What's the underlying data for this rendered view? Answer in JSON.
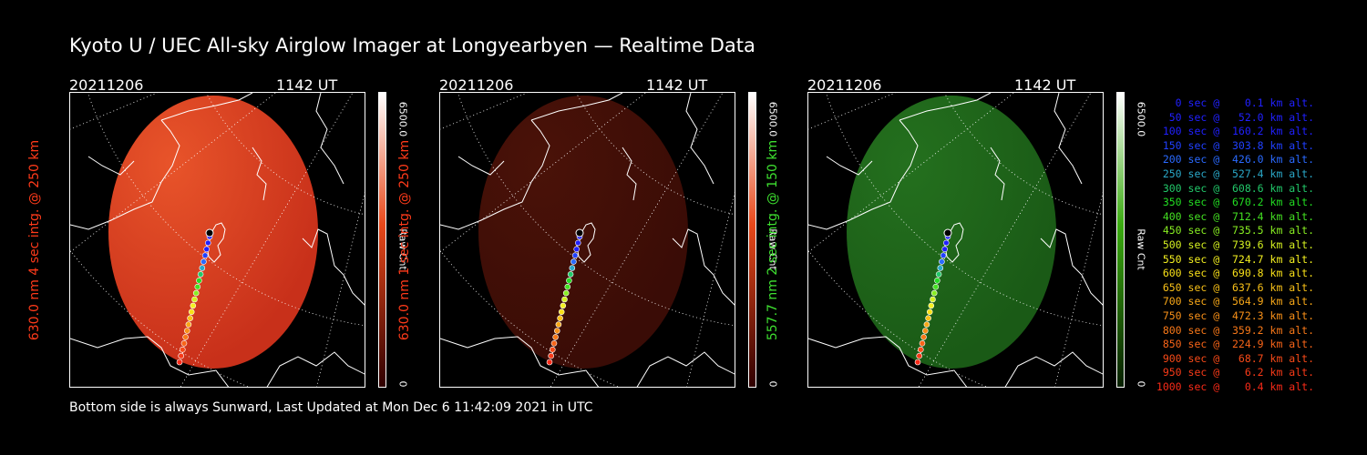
{
  "title": "Kyoto U / UEC All-sky Airglow Imager at Longyearbyen — Realtime Data",
  "footer": "Bottom side is always Sunward, Last Updated at Mon Dec  6 11:42:09 2021 in UTC",
  "panels": [
    {
      "date": "20211206",
      "time": "1142 UT",
      "ylabel": "630.0 nm 4 sec intg. @ 250 km",
      "label_color": "#ff3a1a",
      "colorbar_max": "6500.0",
      "colorbar_unit": "Raw Cnt",
      "colorbar_min": "0",
      "image_color": "#c8301a",
      "image_highlight": "#e8542a",
      "colorbar_top": "#ffffff",
      "colorbar_mid": "#e8481a",
      "colorbar_bottom": "#300000"
    },
    {
      "date": "20211206",
      "time": "1142 UT",
      "ylabel": "630.0 nm 1 sec intg. @ 250 km",
      "label_color": "#ff3a1a",
      "colorbar_max": "6500.0",
      "colorbar_unit": "Raw Cnt",
      "colorbar_min": "0",
      "image_color": "#3a0c06",
      "image_highlight": "#4a1208",
      "colorbar_top": "#ffffff",
      "colorbar_mid": "#e8481a",
      "colorbar_bottom": "#300000"
    },
    {
      "date": "20211206",
      "time": "1142 UT",
      "ylabel": "557.7 nm 2 sec intg. @ 150 km",
      "label_color": "#3ee030",
      "colorbar_max": "6500.0",
      "colorbar_unit": "Raw Cnt",
      "colorbar_min": "0",
      "image_color": "#1a5a16",
      "image_highlight": "#24701e",
      "colorbar_top": "#ffffff",
      "colorbar_mid": "#3aaa10",
      "colorbar_bottom": "#082000"
    }
  ],
  "legend": [
    {
      "text": "   0 sec @    0.1 km alt.",
      "color": "#2020ff"
    },
    {
      "text": "  50 sec @   52.0 km alt.",
      "color": "#2020ff"
    },
    {
      "text": " 100 sec @  160.2 km alt.",
      "color": "#2020ff"
    },
    {
      "text": " 150 sec @  303.8 km alt.",
      "color": "#2040ff"
    },
    {
      "text": " 200 sec @  426.0 km alt.",
      "color": "#2a6aff"
    },
    {
      "text": " 250 sec @  527.4 km alt.",
      "color": "#2aa8c8"
    },
    {
      "text": " 300 sec @  608.6 km alt.",
      "color": "#22c86a"
    },
    {
      "text": " 350 sec @  670.2 km alt.",
      "color": "#22dd22"
    },
    {
      "text": " 400 sec @  712.4 km alt.",
      "color": "#44e022"
    },
    {
      "text": " 450 sec @  735.5 km alt.",
      "color": "#88ee22"
    },
    {
      "text": " 500 sec @  739.6 km alt.",
      "color": "#d4f020"
    },
    {
      "text": " 550 sec @  724.7 km alt.",
      "color": "#f4f020"
    },
    {
      "text": " 600 sec @  690.8 km alt.",
      "color": "#f8e018"
    },
    {
      "text": " 650 sec @  637.6 km alt.",
      "color": "#f8c018"
    },
    {
      "text": " 700 sec @  564.9 km alt.",
      "color": "#f8a818"
    },
    {
      "text": " 750 sec @  472.3 km alt.",
      "color": "#f89018"
    },
    {
      "text": " 800 sec @  359.2 km alt.",
      "color": "#f87818"
    },
    {
      "text": " 850 sec @  224.9 km alt.",
      "color": "#f86418"
    },
    {
      "text": " 900 sec @   68.7 km alt.",
      "color": "#f84a18"
    },
    {
      "text": " 950 sec @    6.2 km alt.",
      "color": "#f83a18"
    },
    {
      "text": "1000 sec @    0.4 km alt.",
      "color": "#f82a18"
    }
  ]
}
